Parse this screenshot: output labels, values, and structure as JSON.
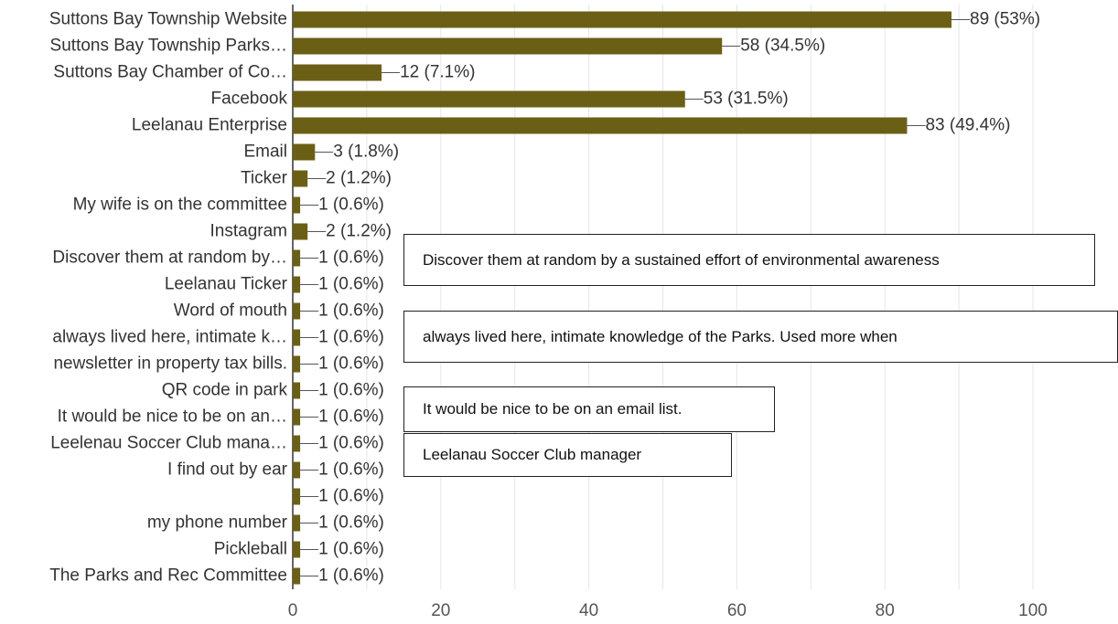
{
  "colors": {
    "bar": "#6b5f16",
    "grid": "#e6e6e6",
    "axis": "#333333",
    "leader": "#555555"
  },
  "chart_data": {
    "type": "bar",
    "orientation": "horizontal",
    "title": "",
    "xlabel": "",
    "ylabel": "",
    "xlim": [
      0,
      100
    ],
    "x_ticks": [
      0,
      20,
      40,
      60,
      80,
      100
    ],
    "x_tick_labels": [
      "0",
      "20",
      "40",
      "60",
      "80",
      "100"
    ],
    "grid": true,
    "categories": [
      "Suttons Bay Township Website",
      "Suttons Bay Township Parks…",
      "Suttons Bay Chamber of Co…",
      "Facebook",
      "Leelanau Enterprise",
      "Email",
      "Ticker",
      "My wife is on the committee",
      "Instagram",
      "Discover them at random by…",
      "Leelanau Ticker",
      "Word of mouth",
      "always lived here, intimate k…",
      "newsletter in property tax bills.",
      "QR code in park",
      "It would be nice to be on an…",
      "Leelenau Soccer Club mana…",
      "I find out by ear",
      "",
      "my phone number",
      "Pickleball",
      "The Parks and Rec Committee"
    ],
    "values": [
      89,
      58,
      12,
      53,
      83,
      3,
      2,
      1,
      2,
      1,
      1,
      1,
      1,
      1,
      1,
      1,
      1,
      1,
      1,
      1,
      1,
      1
    ],
    "data_labels": [
      "89 (53%)",
      "58 (34.5%)",
      "12 (7.1%)",
      "53 (31.5%)",
      "83 (49.4%)",
      "3 (1.8%)",
      "2 (1.2%)",
      "1 (0.6%)",
      "2 (1.2%)",
      "1 (0.6%)",
      "1 (0.6%)",
      "1 (0.6%)",
      "1 (0.6%)",
      "1 (0.6%)",
      "1 (0.6%)",
      "1 (0.6%)",
      "1 (0.6%)",
      "1 (0.6%)",
      "1 (0.6%)",
      "1 (0.6%)",
      "1 (0.6%)",
      "1 (0.6%)"
    ]
  },
  "callouts": [
    {
      "text": "Discover them at random by a sustained effort of environmental awareness"
    },
    {
      "text": "always lived here, intimate knowledge of the Parks. Used more when"
    },
    {
      "text": "It would be nice to be on an email list."
    },
    {
      "text": "Leelanau Soccer Club manager"
    }
  ]
}
